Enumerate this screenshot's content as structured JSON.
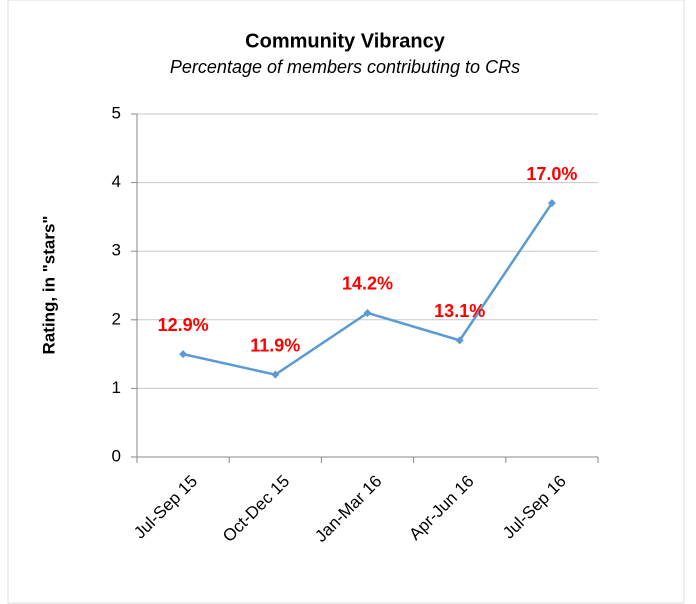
{
  "chart_data": {
    "type": "line",
    "title": "Community Vibrancy",
    "subtitle": "Percentage of members contributing to CRs",
    "y_label": "Rating, in \"stars\"",
    "categories": [
      "Jul-Sep 15",
      "Oct-Dec 15",
      "Jan-Mar 16",
      "Apr-Jun 16",
      "Jul-Sep 16"
    ],
    "series": [
      {
        "name": "Rating",
        "color": "#5b9bd5",
        "values": [
          1.5,
          1.2,
          2.1,
          1.7,
          3.7
        ]
      }
    ],
    "annotations": [
      "12.9%",
      "11.9%",
      "14.2%",
      "13.1%",
      "17.0%"
    ],
    "annotation_color": "#ff0000",
    "ylim": [
      0,
      5
    ],
    "yticks": [
      0,
      1,
      2,
      3,
      4,
      5
    ],
    "grid": true
  }
}
